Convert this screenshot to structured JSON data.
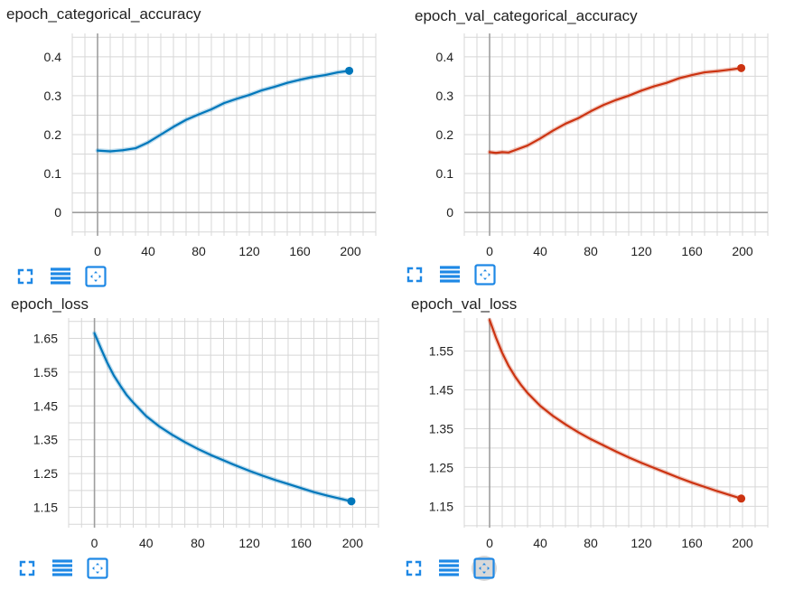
{
  "colors": {
    "train": "#0077bb",
    "val": "#cc3311",
    "grid": "#d7d7d7",
    "axis": "#9e9e9e",
    "icon": "#1e88e5",
    "tick_text": "#212121"
  },
  "toolbar_icons": [
    "expand-icon",
    "data-table-icon",
    "fit-domain-icon"
  ],
  "chart_data": [
    {
      "type": "line",
      "title": "epoch_categorical_accuracy",
      "x_ticks": [
        0,
        40,
        80,
        120,
        160,
        200
      ],
      "y_ticks": [
        0,
        0.1,
        0.2,
        0.3,
        0.4
      ],
      "y_tick_labels": [
        "0",
        "0.1",
        "0.2",
        "0.3",
        "0.4"
      ],
      "xlim": [
        -20,
        220
      ],
      "ylim": [
        -0.06,
        0.46
      ],
      "grid": true,
      "series": [
        {
          "color": "#0077bb",
          "x": [
            0,
            10,
            20,
            30,
            40,
            50,
            60,
            70,
            80,
            90,
            100,
            110,
            120,
            130,
            140,
            150,
            160,
            170,
            180,
            190,
            199
          ],
          "y": [
            0.159,
            0.157,
            0.16,
            0.165,
            0.18,
            0.2,
            0.22,
            0.238,
            0.252,
            0.265,
            0.281,
            0.292,
            0.302,
            0.314,
            0.323,
            0.333,
            0.341,
            0.348,
            0.353,
            0.36,
            0.364
          ]
        }
      ]
    },
    {
      "type": "line",
      "title": "epoch_val_categorical_accuracy",
      "x_ticks": [
        0,
        40,
        80,
        120,
        160,
        200
      ],
      "y_ticks": [
        0,
        0.1,
        0.2,
        0.3,
        0.4
      ],
      "y_tick_labels": [
        "0",
        "0.1",
        "0.2",
        "0.3",
        "0.4"
      ],
      "xlim": [
        -20,
        220
      ],
      "ylim": [
        -0.06,
        0.46
      ],
      "grid": true,
      "series": [
        {
          "color": "#cc3311",
          "x": [
            0,
            5,
            10,
            15,
            20,
            30,
            40,
            50,
            60,
            70,
            80,
            90,
            100,
            110,
            120,
            130,
            140,
            150,
            160,
            170,
            180,
            190,
            199
          ],
          "y": [
            0.155,
            0.153,
            0.155,
            0.154,
            0.16,
            0.172,
            0.19,
            0.21,
            0.228,
            0.242,
            0.26,
            0.276,
            0.289,
            0.3,
            0.313,
            0.324,
            0.333,
            0.345,
            0.353,
            0.36,
            0.363,
            0.367,
            0.371
          ]
        }
      ]
    },
    {
      "type": "line",
      "title": "epoch_loss",
      "x_ticks": [
        0,
        40,
        80,
        120,
        160,
        200
      ],
      "y_ticks": [
        1.15,
        1.25,
        1.35,
        1.45,
        1.55,
        1.65
      ],
      "y_tick_labels": [
        "1.15",
        "1.25",
        "1.35",
        "1.45",
        "1.55",
        "1.65"
      ],
      "xlim": [
        -20,
        220
      ],
      "ylim": [
        1.09,
        1.71
      ],
      "grid": true,
      "series": [
        {
          "color": "#0077bb",
          "x": [
            0,
            5,
            10,
            15,
            20,
            25,
            30,
            40,
            50,
            60,
            70,
            80,
            90,
            100,
            110,
            120,
            130,
            140,
            150,
            160,
            170,
            180,
            190,
            199
          ],
          "y": [
            1.665,
            1.62,
            1.577,
            1.54,
            1.51,
            1.482,
            1.46,
            1.42,
            1.39,
            1.365,
            1.343,
            1.323,
            1.305,
            1.289,
            1.273,
            1.258,
            1.244,
            1.231,
            1.219,
            1.207,
            1.195,
            1.185,
            1.176,
            1.168
          ]
        }
      ]
    },
    {
      "type": "line",
      "title": "epoch_val_loss",
      "x_ticks": [
        0,
        40,
        80,
        120,
        160,
        200
      ],
      "y_ticks": [
        1.15,
        1.25,
        1.35,
        1.45,
        1.55
      ],
      "y_tick_labels": [
        "1.15",
        "1.25",
        "1.35",
        "1.45",
        "1.55"
      ],
      "xlim": [
        -20,
        220
      ],
      "ylim": [
        1.095,
        1.635
      ],
      "grid": true,
      "series": [
        {
          "color": "#cc3311",
          "x": [
            0,
            5,
            10,
            15,
            20,
            25,
            30,
            40,
            50,
            60,
            70,
            80,
            90,
            100,
            110,
            120,
            130,
            140,
            150,
            160,
            170,
            180,
            190,
            199
          ],
          "y": [
            1.63,
            1.585,
            1.545,
            1.512,
            1.485,
            1.462,
            1.442,
            1.409,
            1.383,
            1.361,
            1.341,
            1.323,
            1.307,
            1.291,
            1.276,
            1.262,
            1.249,
            1.236,
            1.223,
            1.211,
            1.2,
            1.189,
            1.179,
            1.17
          ]
        }
      ]
    }
  ]
}
